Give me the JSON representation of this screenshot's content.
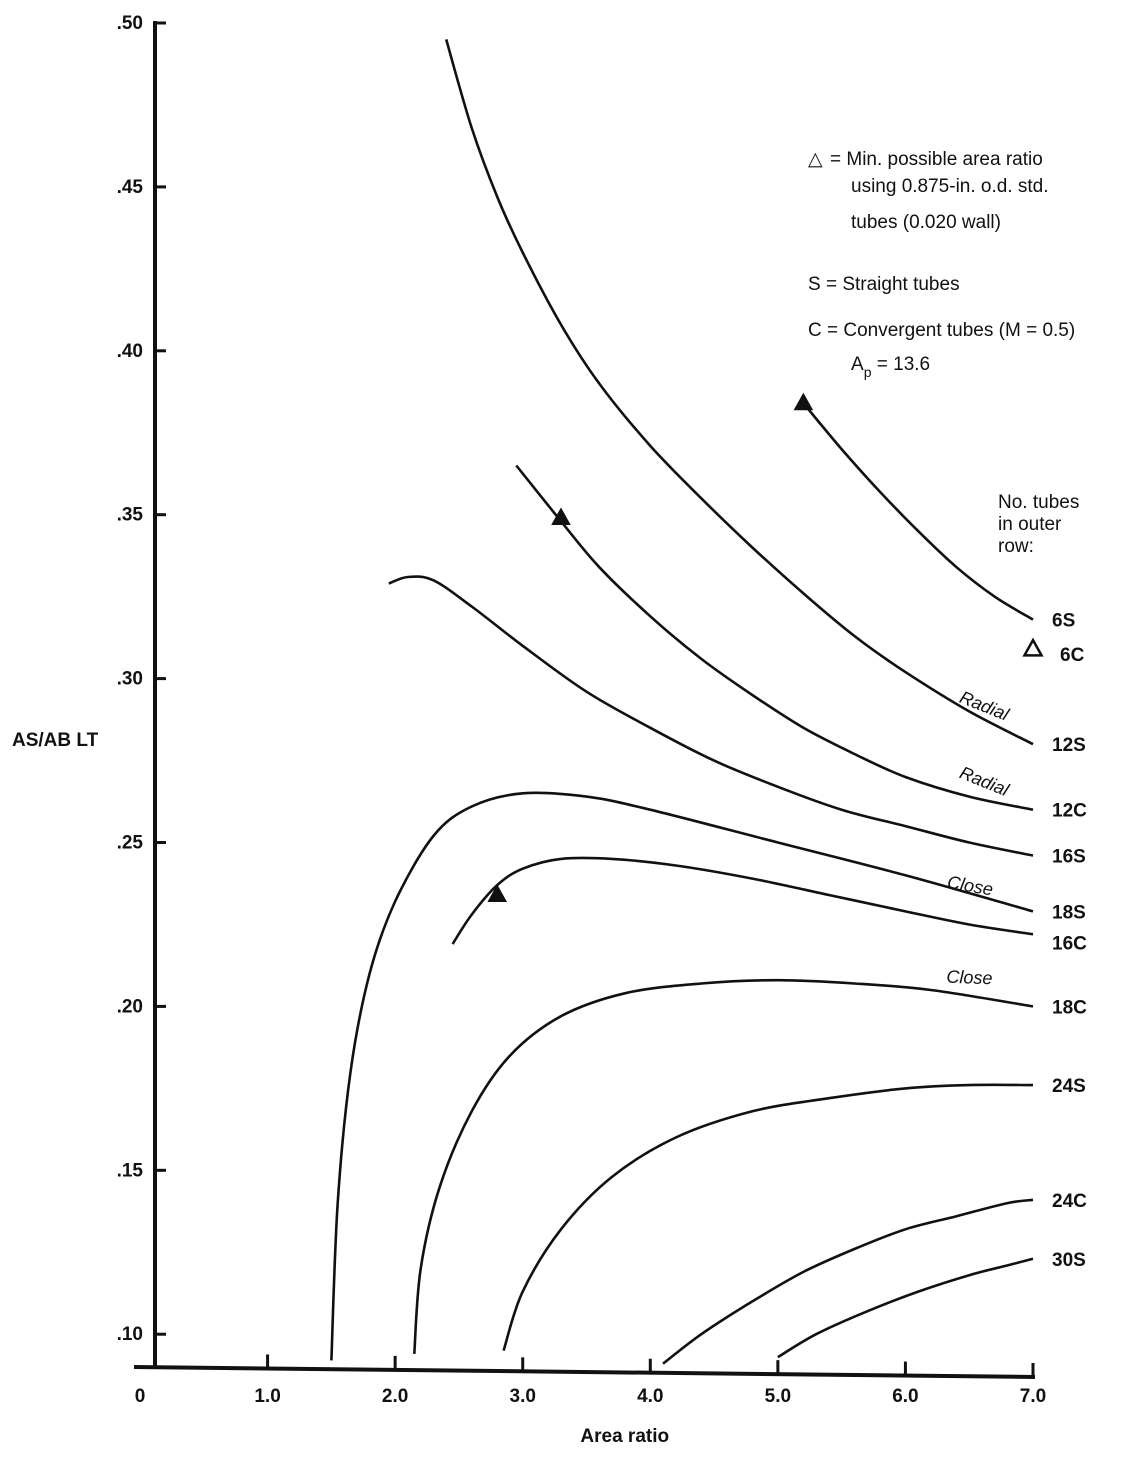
{
  "chart_data": {
    "type": "line",
    "title": "",
    "xlabel": "Area ratio",
    "ylabel": "AS/AB LT",
    "xlim": [
      0,
      7.0
    ],
    "ylim": [
      0.09,
      0.5
    ],
    "x_ticks": [
      {
        "value": 0,
        "label": "0"
      },
      {
        "value": 1.0,
        "label": "1.0"
      },
      {
        "value": 2.0,
        "label": "2.0"
      },
      {
        "value": 3.0,
        "label": "3.0"
      },
      {
        "value": 4.0,
        "label": "4.0"
      },
      {
        "value": 5.0,
        "label": "5.0"
      },
      {
        "value": 6.0,
        "label": "6.0"
      },
      {
        "value": 7.0,
        "label": "7.0"
      }
    ],
    "y_ticks": [
      {
        "value": 0.1,
        "label": ".10"
      },
      {
        "value": 0.15,
        "label": ".15"
      },
      {
        "value": 0.2,
        "label": ".20"
      },
      {
        "value": 0.25,
        "label": ".25"
      },
      {
        "value": 0.3,
        "label": ".30"
      },
      {
        "value": 0.35,
        "label": ".35"
      },
      {
        "value": 0.4,
        "label": ".40"
      },
      {
        "value": 0.45,
        "label": ".45"
      },
      {
        "value": 0.5,
        "label": ".50"
      }
    ],
    "grid": false,
    "series": [
      {
        "name": "6S",
        "x": [
          5.2,
          5.5,
          5.8,
          6.1,
          6.4,
          6.7,
          7.0
        ],
        "y": [
          0.384,
          0.37,
          0.357,
          0.345,
          0.334,
          0.325,
          0.318
        ]
      },
      {
        "name": "12S",
        "x": [
          2.4,
          2.6,
          2.8,
          3.0,
          3.3,
          3.6,
          4.0,
          4.4,
          4.8,
          5.2,
          5.6,
          6.0,
          6.5,
          7.0
        ],
        "y": [
          0.495,
          0.468,
          0.447,
          0.43,
          0.408,
          0.39,
          0.371,
          0.355,
          0.34,
          0.326,
          0.313,
          0.302,
          0.29,
          0.28
        ]
      },
      {
        "name": "12C",
        "x": [
          2.95,
          3.3,
          3.6,
          4.0,
          4.4,
          4.8,
          5.2,
          5.6,
          6.0,
          6.5,
          7.0
        ],
        "y": [
          0.365,
          0.348,
          0.334,
          0.319,
          0.306,
          0.295,
          0.285,
          0.277,
          0.27,
          0.264,
          0.26
        ]
      },
      {
        "name": "16S",
        "x": [
          1.95,
          2.1,
          2.3,
          2.6,
          3.0,
          3.5,
          4.0,
          4.5,
          5.0,
          5.5,
          6.0,
          6.5,
          7.0
        ],
        "y": [
          0.329,
          0.331,
          0.33,
          0.322,
          0.31,
          0.296,
          0.285,
          0.275,
          0.267,
          0.26,
          0.255,
          0.25,
          0.246
        ]
      },
      {
        "name": "18S",
        "x": [
          1.5,
          1.55,
          1.65,
          1.8,
          2.0,
          2.3,
          2.6,
          3.0,
          3.5,
          4.0,
          5.0,
          6.0,
          7.0
        ],
        "y": [
          0.092,
          0.14,
          0.18,
          0.21,
          0.232,
          0.252,
          0.261,
          0.265,
          0.264,
          0.26,
          0.25,
          0.24,
          0.229
        ]
      },
      {
        "name": "16C",
        "x": [
          2.45,
          2.6,
          2.8,
          3.0,
          3.3,
          3.7,
          4.2,
          4.8,
          5.4,
          6.0,
          6.5,
          7.0
        ],
        "y": [
          0.219,
          0.228,
          0.237,
          0.242,
          0.245,
          0.245,
          0.243,
          0.239,
          0.234,
          0.229,
          0.225,
          0.222
        ]
      },
      {
        "name": "18C",
        "x": [
          2.15,
          2.2,
          2.35,
          2.6,
          2.9,
          3.3,
          3.8,
          4.4,
          5.0,
          5.6,
          6.2,
          7.0
        ],
        "y": [
          0.094,
          0.12,
          0.145,
          0.168,
          0.185,
          0.197,
          0.204,
          0.207,
          0.208,
          0.207,
          0.205,
          0.2
        ]
      },
      {
        "name": "24S",
        "x": [
          2.85,
          3.0,
          3.3,
          3.7,
          4.2,
          4.8,
          5.4,
          6.0,
          6.5,
          7.0
        ],
        "y": [
          0.095,
          0.113,
          0.132,
          0.148,
          0.16,
          0.168,
          0.172,
          0.175,
          0.176,
          0.176
        ]
      },
      {
        "name": "24C",
        "x": [
          4.1,
          4.4,
          4.8,
          5.2,
          5.6,
          6.0,
          6.4,
          6.8,
          7.0
        ],
        "y": [
          0.091,
          0.1,
          0.11,
          0.119,
          0.126,
          0.132,
          0.136,
          0.14,
          0.141
        ]
      },
      {
        "name": "30S",
        "x": [
          5.0,
          5.3,
          5.7,
          6.1,
          6.5,
          6.8,
          7.0
        ],
        "y": [
          0.093,
          0.1,
          0.107,
          0.113,
          0.118,
          0.121,
          0.123
        ]
      }
    ],
    "markers": [
      {
        "x": 5.2,
        "y": 0.384,
        "style": "filled"
      },
      {
        "x": 3.3,
        "y": 0.349,
        "style": "filled"
      },
      {
        "x": 2.8,
        "y": 0.234,
        "style": "filled"
      },
      {
        "x": 7.0,
        "y": 0.309,
        "style": "open"
      }
    ],
    "annotations": [
      {
        "text": "Radial",
        "x": 6.6,
        "y": 0.29,
        "angle": 22
      },
      {
        "text": "Radial",
        "x": 6.6,
        "y": 0.267,
        "angle": 22
      },
      {
        "text": "Close",
        "x": 6.5,
        "y": 0.235,
        "angle": 10
      },
      {
        "text": "Close",
        "x": 6.5,
        "y": 0.207,
        "angle": 2
      }
    ],
    "legend": {
      "placement": "top-right",
      "lines": [
        {
          "symbol": "△",
          "text": "= Min. possible area ratio"
        },
        {
          "symbol": "",
          "text": "using 0.875-in. o.d. std."
        },
        {
          "symbol": "",
          "text": "tubes (0.020 wall)"
        },
        {
          "symbol": "",
          "text": "S = Straight tubes"
        },
        {
          "symbol": "",
          "text": "C = Convergent tubes (M = 0.5)"
        }
      ],
      "ap_label": {
        "main": "A",
        "sub": "p",
        "rest": " = 13.6"
      },
      "tubes_title": [
        "No. tubes",
        "in outer",
        "row:"
      ]
    },
    "colors": {
      "line": "#111111",
      "background": "#ffffff"
    }
  }
}
